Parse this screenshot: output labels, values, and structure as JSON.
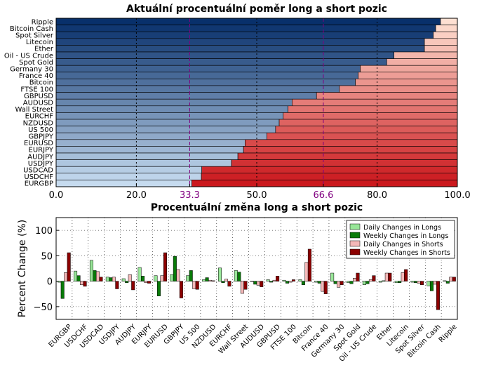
{
  "chart_data": [
    {
      "type": "bar",
      "orientation": "horizontal",
      "stacked": true,
      "title": "Aktuální procentuální poměr long a short pozic",
      "xlim": [
        0,
        100
      ],
      "xticks": [
        "0.0",
        "20.0",
        "33.3",
        "50.0",
        "66.6",
        "80.0",
        "100.0"
      ],
      "reference_lines": [
        33.3,
        66.6
      ],
      "grid": true,
      "categories": [
        "Ripple",
        "Bitcoin Cash",
        "Spot Silver",
        "Litecoin",
        "Ether",
        "Oil - US Crude",
        "Spot Gold",
        "Germany 30",
        "France 40",
        "Bitcoin",
        "FTSE 100",
        "GBPUSD",
        "AUDUSD",
        "Wall Street",
        "EURCHF",
        "NZDUSD",
        "US 500",
        "GBPJPY",
        "EURUSD",
        "EURJPY",
        "AUDJPY",
        "USDJPY",
        "USDCAD",
        "USDCHF",
        "EURGBP"
      ],
      "series": [
        {
          "values": [
            95.8,
            94.6,
            94.0,
            91.8,
            91.8,
            84.2,
            82.4,
            75.8,
            75.3,
            74.6,
            70.6,
            64.9,
            58.8,
            57.8,
            56.6,
            55.6,
            54.7,
            52.5,
            47.1,
            46.7,
            45.3,
            43.7,
            36.3,
            36.2,
            33.8
          ]
        }
      ],
      "colors": {
        "long_dark": "#08306b",
        "long_light": "#c6dbef",
        "short_light": "#fee0d2",
        "short_dark": "#cb181d",
        "reference": "#800080"
      }
    },
    {
      "type": "bar",
      "title": "Procentuální změna long a short pozic",
      "ylabel": "Percent Change (%)",
      "ylim": [
        -75,
        125
      ],
      "yticks": [
        "100",
        "50",
        "0",
        "−50"
      ],
      "grid": true,
      "legend_position": "top-right",
      "categories": [
        "EURGBP",
        "USDCHF",
        "USDCAD",
        "USDJPY",
        "AUDJPY",
        "EURJPY",
        "EURUSD",
        "GBPJPY",
        "US 500",
        "NZDUSD",
        "EURCHF",
        "Wall Street",
        "AUDUSD",
        "GBPUSD",
        "FTSE 100",
        "Bitcoin",
        "France 40",
        "Germany 30",
        "Spot Gold",
        "Oil - US Crude",
        "Ether",
        "Litecoin",
        "Spot Silver",
        "Bitcoin Cash",
        "Ripple"
      ],
      "series": [
        {
          "name": "Daily Changes in Longs",
          "color": "#98e698",
          "values": [
            -2,
            20,
            41,
            8,
            5,
            27,
            11,
            13,
            11,
            3,
            26,
            21,
            0,
            3,
            2,
            3,
            -2,
            16,
            -3,
            -7,
            -2,
            -3,
            -2,
            -9,
            1
          ]
        },
        {
          "name": "Weekly Changes in Longs",
          "color": "#087a08",
          "values": [
            -34,
            11,
            21,
            7,
            -3,
            10,
            -29,
            49,
            21,
            7,
            -3,
            18,
            -6,
            -2,
            -4,
            -7,
            -4,
            -5,
            -5,
            -5,
            1,
            -3,
            -3,
            -19,
            -4
          ]
        },
        {
          "name": "Daily Changes in Shorts",
          "color": "#f4b8b8",
          "values": [
            17,
            -7,
            19,
            8,
            13,
            -3,
            11,
            23,
            -15,
            2,
            4,
            -24,
            -8,
            2,
            -2,
            37,
            -20,
            -12,
            6,
            3,
            16,
            17,
            -4,
            -6,
            8
          ]
        },
        {
          "name": "Weekly Changes in Shorts",
          "color": "#8b0000",
          "values": [
            56,
            -10,
            8,
            -15,
            -17,
            -4,
            56,
            -33,
            -16,
            1,
            -10,
            -16,
            -11,
            10,
            3,
            63,
            -25,
            -7,
            16,
            11,
            16,
            23,
            -7,
            -56,
            8
          ]
        }
      ]
    }
  ]
}
